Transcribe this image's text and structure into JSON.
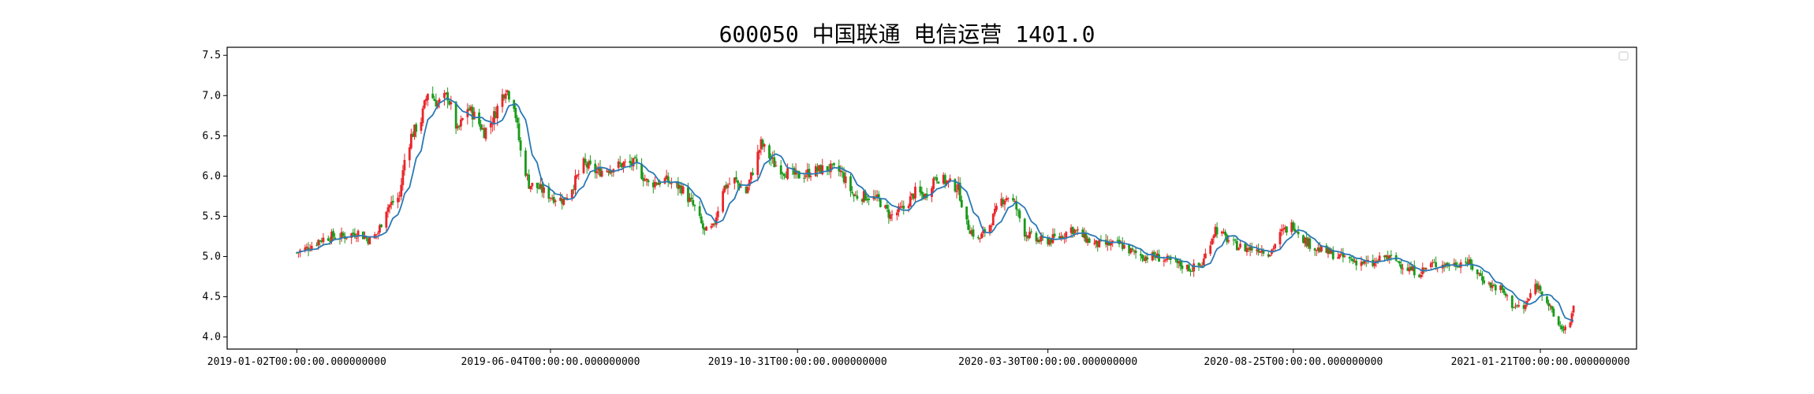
{
  "title": "600050 中国联通 电信运营 1401.0",
  "colors": {
    "up": "#e8262a",
    "down": "#1a9a1a",
    "ma": "#2a79b5",
    "frame": "#000000"
  },
  "chart_data": {
    "type": "candlestick",
    "title": "600050 中国联通 电信运营 1401.0",
    "xlabel": "",
    "ylabel": "",
    "ylim": [
      3.85,
      7.6
    ],
    "x_range": [
      "2018-11-21",
      "2021-03-20"
    ],
    "x_ticks": [
      {
        "date": "2019-01-02",
        "label": "2019-01-02T00:00:00.000000000"
      },
      {
        "date": "2019-06-04",
        "label": "2019-06-04T00:00:00.000000000"
      },
      {
        "date": "2019-10-31",
        "label": "2019-10-31T00:00:00.000000000"
      },
      {
        "date": "2020-03-30",
        "label": "2020-03-30T00:00:00.000000000"
      },
      {
        "date": "2020-08-25",
        "label": "2020-08-25T00:00:00.000000000"
      },
      {
        "date": "2021-01-21",
        "label": "2021-01-21T00:00:00.000000000"
      }
    ],
    "y_ticks": [
      4.0,
      4.5,
      5.0,
      5.5,
      6.0,
      6.5,
      7.0,
      7.5
    ],
    "legend": {
      "placement": "top-right",
      "entries": []
    },
    "grid": false,
    "start_date": "2019-01-02",
    "end_date": "2021-02-10",
    "close_path": [
      [
        "2019-01-02",
        5.05
      ],
      [
        "2019-01-08",
        5.1
      ],
      [
        "2019-01-15",
        5.2
      ],
      [
        "2019-01-22",
        5.25
      ],
      [
        "2019-01-30",
        5.25
      ],
      [
        "2019-02-08",
        5.3
      ],
      [
        "2019-02-15",
        5.2
      ],
      [
        "2019-02-20",
        5.3
      ],
      [
        "2019-02-25",
        5.6
      ],
      [
        "2019-03-05",
        5.75
      ],
      [
        "2019-03-08",
        6.2
      ],
      [
        "2019-03-12",
        6.5
      ],
      [
        "2019-03-18",
        6.7
      ],
      [
        "2019-03-22",
        7.05
      ],
      [
        "2019-03-28",
        6.9
      ],
      [
        "2019-04-03",
        7.0
      ],
      [
        "2019-04-09",
        6.55
      ],
      [
        "2019-04-15",
        6.85
      ],
      [
        "2019-04-19",
        6.75
      ],
      [
        "2019-04-25",
        6.55
      ],
      [
        "2019-04-30",
        6.7
      ],
      [
        "2019-05-08",
        7.1
      ],
      [
        "2019-05-13",
        6.9
      ],
      [
        "2019-05-17",
        6.3
      ],
      [
        "2019-05-22",
        5.9
      ],
      [
        "2019-05-28",
        5.85
      ],
      [
        "2019-06-04",
        5.75
      ],
      [
        "2019-06-12",
        5.7
      ],
      [
        "2019-06-18",
        5.9
      ],
      [
        "2019-06-24",
        6.15
      ],
      [
        "2019-07-02",
        6.05
      ],
      [
        "2019-07-10",
        6.1
      ],
      [
        "2019-07-18",
        6.15
      ],
      [
        "2019-07-25",
        6.15
      ],
      [
        "2019-08-02",
        5.9
      ],
      [
        "2019-08-12",
        5.95
      ],
      [
        "2019-08-22",
        5.85
      ],
      [
        "2019-08-30",
        5.6
      ],
      [
        "2019-09-05",
        5.3
      ],
      [
        "2019-09-10",
        5.35
      ],
      [
        "2019-09-16",
        5.85
      ],
      [
        "2019-09-23",
        5.95
      ],
      [
        "2019-09-30",
        5.8
      ],
      [
        "2019-10-09",
        6.4
      ],
      [
        "2019-10-17",
        6.15
      ],
      [
        "2019-10-24",
        6.05
      ],
      [
        "2019-10-31",
        6.0
      ],
      [
        "2019-11-08",
        6.05
      ],
      [
        "2019-11-18",
        6.1
      ],
      [
        "2019-11-26",
        6.05
      ],
      [
        "2019-12-04",
        5.75
      ],
      [
        "2019-12-12",
        5.75
      ],
      [
        "2019-12-19",
        5.7
      ],
      [
        "2019-12-26",
        5.5
      ],
      [
        "2020-01-03",
        5.6
      ],
      [
        "2020-01-10",
        5.8
      ],
      [
        "2020-01-16",
        5.75
      ],
      [
        "2020-01-22",
        6.0
      ],
      [
        "2020-02-05",
        5.85
      ],
      [
        "2020-02-10",
        5.4
      ],
      [
        "2020-02-17",
        5.2
      ],
      [
        "2020-02-24",
        5.4
      ],
      [
        "2020-03-02",
        5.7
      ],
      [
        "2020-03-06",
        5.75
      ],
      [
        "2020-03-10",
        5.65
      ],
      [
        "2020-03-16",
        5.3
      ],
      [
        "2020-03-23",
        5.2
      ],
      [
        "2020-03-30",
        5.2
      ],
      [
        "2020-04-07",
        5.25
      ],
      [
        "2020-04-13",
        5.35
      ],
      [
        "2020-04-20",
        5.25
      ],
      [
        "2020-04-27",
        5.15
      ],
      [
        "2020-05-06",
        5.15
      ],
      [
        "2020-05-13",
        5.15
      ],
      [
        "2020-05-20",
        5.05
      ],
      [
        "2020-05-27",
        5.0
      ],
      [
        "2020-06-03",
        5.0
      ],
      [
        "2020-06-10",
        4.95
      ],
      [
        "2020-06-17",
        4.9
      ],
      [
        "2020-06-24",
        4.85
      ],
      [
        "2020-07-01",
        4.9
      ],
      [
        "2020-07-06",
        5.2
      ],
      [
        "2020-07-09",
        5.35
      ],
      [
        "2020-07-14",
        5.25
      ],
      [
        "2020-07-20",
        5.15
      ],
      [
        "2020-07-27",
        5.1
      ],
      [
        "2020-08-04",
        5.1
      ],
      [
        "2020-08-11",
        5.05
      ],
      [
        "2020-08-18",
        5.3
      ],
      [
        "2020-08-25",
        5.4
      ],
      [
        "2020-09-01",
        5.2
      ],
      [
        "2020-09-08",
        5.1
      ],
      [
        "2020-09-15",
        5.05
      ],
      [
        "2020-09-22",
        5.0
      ],
      [
        "2020-09-30",
        4.95
      ],
      [
        "2020-10-12",
        4.9
      ],
      [
        "2020-10-19",
        5.0
      ],
      [
        "2020-10-26",
        4.95
      ],
      [
        "2020-11-02",
        4.85
      ],
      [
        "2020-11-09",
        4.8
      ],
      [
        "2020-11-16",
        4.9
      ],
      [
        "2020-11-23",
        4.9
      ],
      [
        "2020-11-30",
        4.9
      ],
      [
        "2020-12-07",
        4.95
      ],
      [
        "2020-12-14",
        4.8
      ],
      [
        "2020-12-21",
        4.65
      ],
      [
        "2020-12-28",
        4.6
      ],
      [
        "2021-01-04",
        4.4
      ],
      [
        "2021-01-11",
        4.35
      ],
      [
        "2021-01-18",
        4.65
      ],
      [
        "2021-01-21",
        4.6
      ],
      [
        "2021-01-25",
        4.45
      ],
      [
        "2021-01-29",
        4.25
      ],
      [
        "2021-02-03",
        4.1
      ],
      [
        "2021-02-08",
        4.15
      ],
      [
        "2021-02-10",
        4.35
      ]
    ]
  }
}
